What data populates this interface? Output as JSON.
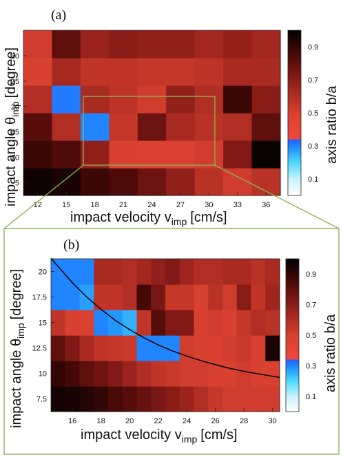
{
  "colors": {
    "zoom_box": "#8ab14f",
    "curve": "#000000",
    "colorbar": [
      "#ffffff",
      "#c8f2ff",
      "#4dd9ff",
      "#1f8fff",
      "#2a5cff",
      "#e8473e",
      "#c83a2f",
      "#8a1c18",
      "#4a0a08",
      "#000000"
    ]
  },
  "chart_data": [
    {
      "type": "heatmap",
      "panel_label": "(a)",
      "xlabel": "impact velocity v",
      "xlabel_sub": "imp",
      "xlabel_unit": "[cm/s]",
      "ylabel": "impact angle θ",
      "ylabel_sub": "imp",
      "ylabel_unit": "[degree]",
      "x_centers": [
        12,
        15,
        18,
        21,
        24,
        27,
        30,
        33,
        36
      ],
      "y_centers": [
        5,
        10,
        15,
        20,
        25,
        30
      ],
      "xticks": [
        "12",
        "15",
        "18",
        "21",
        "24",
        "27",
        "30",
        "33",
        "36"
      ],
      "yticks": [
        "5",
        "10",
        "15",
        "20",
        "25",
        "30"
      ],
      "xlim": [
        10.5,
        37.5
      ],
      "ylim": [
        2.5,
        35
      ],
      "rows_y": [
        5,
        10,
        15,
        20,
        25,
        30
      ],
      "values": [
        [
          0.97,
          0.95,
          0.88,
          0.84,
          0.77,
          0.68,
          0.58,
          0.52,
          0.58
        ],
        [
          0.88,
          0.84,
          0.68,
          0.5,
          0.48,
          0.48,
          0.52,
          0.72,
          0.98
        ],
        [
          0.82,
          0.6,
          0.3,
          0.55,
          0.77,
          0.62,
          0.58,
          0.6,
          0.8
        ],
        [
          0.6,
          0.31,
          0.62,
          0.57,
          0.52,
          0.68,
          0.6,
          0.88,
          0.7
        ],
        [
          0.5,
          0.63,
          0.56,
          0.56,
          0.55,
          0.55,
          0.57,
          0.62,
          0.62
        ],
        [
          0.52,
          0.8,
          0.66,
          0.7,
          0.68,
          0.68,
          0.64,
          0.67,
          0.64
        ]
      ],
      "colorbar_label": "axis ratio b/a",
      "colorbar_ticks": [
        "0.1",
        "0.3",
        "0.5",
        "0.7",
        "0.9"
      ],
      "colorbar_range": [
        0,
        1
      ],
      "zoom_region": {
        "x": [
          13.5,
          31.5
        ],
        "y": [
          7.5,
          20
        ]
      }
    },
    {
      "type": "heatmap",
      "panel_label": "(b)",
      "xlabel": "impact velocity v",
      "xlabel_sub": "imp",
      "xlabel_unit": "[cm/s]",
      "ylabel": "impact angle θ",
      "ylabel_sub": "imp",
      "ylabel_unit": "[degree]",
      "x_centers": [
        15,
        16,
        17,
        18,
        19,
        20,
        21,
        22,
        23,
        24,
        25,
        26,
        27,
        28,
        29,
        30
      ],
      "y_centers": [
        7.5,
        10,
        12.5,
        15,
        17.5,
        20
      ],
      "xticks": [
        "16",
        "18",
        "20",
        "22",
        "24",
        "26",
        "28",
        "30"
      ],
      "yticks": [
        "7.5",
        "10",
        "12.5",
        "15",
        "17.5",
        "20"
      ],
      "xlim": [
        14.5,
        30.5
      ],
      "ylim": [
        6.25,
        21.25
      ],
      "values": [
        [
          0.96,
          0.95,
          0.93,
          0.9,
          0.85,
          0.82,
          0.78,
          0.74,
          0.7,
          0.66,
          0.6,
          0.55,
          0.52,
          0.52,
          0.52,
          0.52
        ],
        [
          0.9,
          0.86,
          0.8,
          0.76,
          0.72,
          0.66,
          0.6,
          0.56,
          0.54,
          0.52,
          0.52,
          0.5,
          0.5,
          0.52,
          0.5,
          0.5
        ],
        [
          0.8,
          0.72,
          0.62,
          0.56,
          0.55,
          0.54,
          0.3,
          0.3,
          0.3,
          0.52,
          0.5,
          0.5,
          0.52,
          0.54,
          0.5,
          0.95
        ],
        [
          0.56,
          0.5,
          0.48,
          0.3,
          0.28,
          0.25,
          0.56,
          0.82,
          0.72,
          0.72,
          0.5,
          0.52,
          0.5,
          0.55,
          0.6,
          0.58
        ],
        [
          0.3,
          0.3,
          0.27,
          0.56,
          0.56,
          0.6,
          0.86,
          0.74,
          0.55,
          0.55,
          0.5,
          0.58,
          0.52,
          0.7,
          0.56,
          0.65
        ],
        [
          0.3,
          0.3,
          0.3,
          0.62,
          0.62,
          0.6,
          0.64,
          0.68,
          0.72,
          0.65,
          0.6,
          0.6,
          0.62,
          0.62,
          0.58,
          0.62
        ]
      ],
      "colorbar_label": "axis ratio b/a",
      "colorbar_ticks": [
        "0.1",
        "0.3",
        "0.5",
        "0.7",
        "0.9"
      ],
      "colorbar_range": [
        0,
        1
      ],
      "curve": {
        "x": [
          14.5,
          15,
          16,
          17,
          18,
          19,
          20,
          21,
          22,
          23,
          24,
          25,
          26,
          27,
          28,
          29,
          30.5
        ],
        "y": [
          21.3,
          20.5,
          18.9,
          17.5,
          16.3,
          15.2,
          14.3,
          13.5,
          12.8,
          12.2,
          11.7,
          11.25,
          10.85,
          10.5,
          10.2,
          9.95,
          9.6
        ]
      }
    }
  ]
}
